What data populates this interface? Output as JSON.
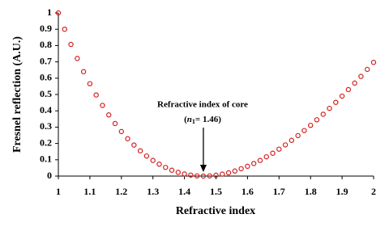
{
  "chart_data": {
    "type": "scatter",
    "x_label": "Refractive index",
    "y_label": "Fresnel reflection (A.U.)",
    "annotation": {
      "line1": "Refractive  index of core",
      "open": "(",
      "symbol": "n",
      "subscript": "1",
      "rest": "= 1.46)"
    },
    "series": [
      {
        "color": "#d42020",
        "x": [
          1.0,
          1.02,
          1.04,
          1.06,
          1.08,
          1.1,
          1.12,
          1.14,
          1.16,
          1.18,
          1.2,
          1.22,
          1.24,
          1.26,
          1.28,
          1.3,
          1.32,
          1.34,
          1.36,
          1.38,
          1.4,
          1.42,
          1.44,
          1.46,
          1.48,
          1.5,
          1.52,
          1.54,
          1.56,
          1.58,
          1.6,
          1.62,
          1.64,
          1.66,
          1.68,
          1.7,
          1.72,
          1.74,
          1.76,
          1.78,
          1.8,
          1.82,
          1.84,
          1.86,
          1.88,
          1.9,
          1.92,
          1.94,
          1.96,
          1.98,
          2.0
        ],
        "values": [
          1.0,
          0.9,
          0.807,
          0.721,
          0.64,
          0.566,
          0.497,
          0.433,
          0.375,
          0.322,
          0.273,
          0.229,
          0.19,
          0.155,
          0.123,
          0.096,
          0.073,
          0.053,
          0.036,
          0.023,
          0.013,
          0.006,
          0.001,
          0,
          0.001,
          0.005,
          0.012,
          0.02,
          0.031,
          0.045,
          0.06,
          0.077,
          0.096,
          0.118,
          0.14,
          0.165,
          0.191,
          0.219,
          0.248,
          0.279,
          0.311,
          0.345,
          0.379,
          0.415,
          0.452,
          0.49,
          0.53,
          0.57,
          0.611,
          0.654,
          0.697
        ]
      }
    ],
    "xlim": [
      1,
      2
    ],
    "xticks": [
      1,
      1.1,
      1.2,
      1.3,
      1.4,
      1.5,
      1.6,
      1.7,
      1.8,
      1.9,
      2
    ],
    "ylim": [
      0,
      1
    ],
    "yticks": [
      0,
      0.1,
      0.2,
      0.3,
      0.4,
      0.5,
      0.6,
      0.7,
      0.8,
      0.9,
      1
    ],
    "grid": false
  }
}
